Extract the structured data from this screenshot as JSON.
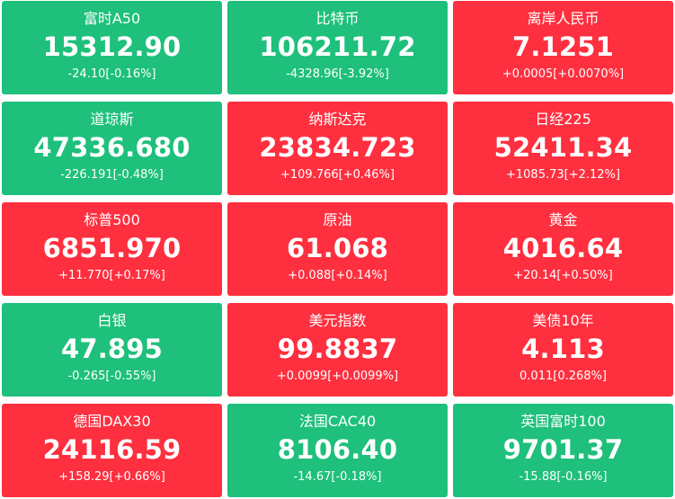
{
  "colors": {
    "up": "#fe2f3f",
    "down": "#1ec07b",
    "text": "#ffffff"
  },
  "quotes": [
    {
      "name": "富时A50",
      "price": "15312.90",
      "change": "-24.10[-0.16%]",
      "direction": "down"
    },
    {
      "name": "比特币",
      "price": "106211.72",
      "change": "-4328.96[-3.92%]",
      "direction": "down"
    },
    {
      "name": "离岸人民币",
      "price": "7.1251",
      "change": "+0.0005[+0.0070%]",
      "direction": "up"
    },
    {
      "name": "道琼斯",
      "price": "47336.680",
      "change": "-226.191[-0.48%]",
      "direction": "down"
    },
    {
      "name": "纳斯达克",
      "price": "23834.723",
      "change": "+109.766[+0.46%]",
      "direction": "up"
    },
    {
      "name": "日经225",
      "price": "52411.34",
      "change": "+1085.73[+2.12%]",
      "direction": "up"
    },
    {
      "name": "标普500",
      "price": "6851.970",
      "change": "+11.770[+0.17%]",
      "direction": "up"
    },
    {
      "name": "原油",
      "price": "61.068",
      "change": "+0.088[+0.14%]",
      "direction": "up"
    },
    {
      "name": "黄金",
      "price": "4016.64",
      "change": "+20.14[+0.50%]",
      "direction": "up"
    },
    {
      "name": "白银",
      "price": "47.895",
      "change": "-0.265[-0.55%]",
      "direction": "down"
    },
    {
      "name": "美元指数",
      "price": "99.8837",
      "change": "+0.0099[+0.0099%]",
      "direction": "up"
    },
    {
      "name": "美债10年",
      "price": "4.113",
      "change": "0.011[0.268%]",
      "direction": "up"
    },
    {
      "name": "德国DAX30",
      "price": "24116.59",
      "change": "+158.29[+0.66%]",
      "direction": "up"
    },
    {
      "name": "法国CAC40",
      "price": "8106.40",
      "change": "-14.67[-0.18%]",
      "direction": "down"
    },
    {
      "name": "英国富时100",
      "price": "9701.37",
      "change": "-15.88[-0.16%]",
      "direction": "down"
    }
  ]
}
